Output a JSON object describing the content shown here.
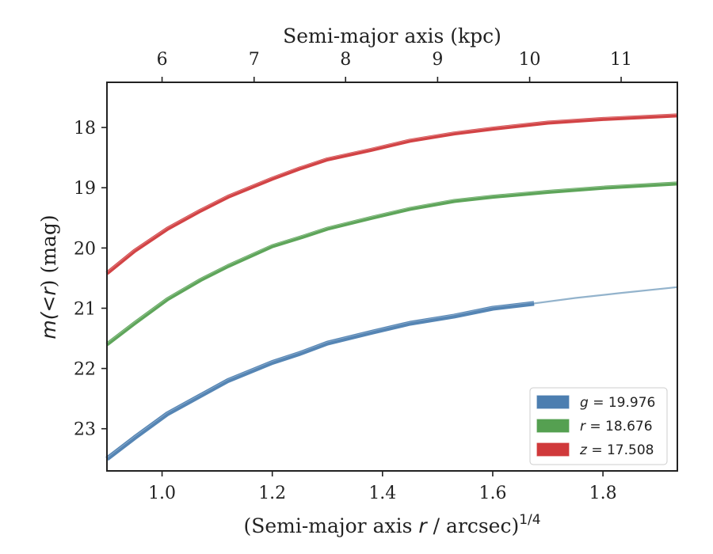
{
  "chart_data": {
    "type": "line",
    "xlabel_prefix": "(Semi-major axis ",
    "xlabel_var": "r",
    "xlabel_suffix": " / arcsec)",
    "xlabel_exponent": "1/4",
    "top_xlabel": "Semi-major axis (kpc)",
    "ylabel_prefix": "m(<",
    "ylabel_var": "r",
    "ylabel_suffix": ") (mag)",
    "xlim": [
      0.9,
      1.935
    ],
    "ylim": [
      23.7,
      17.25
    ],
    "y_inverted": true,
    "xticks": [
      1.0,
      1.2,
      1.4,
      1.6,
      1.8
    ],
    "xtick_labels": [
      "1.0",
      "1.2",
      "1.4",
      "1.6",
      "1.8"
    ],
    "yticks": [
      18,
      19,
      20,
      21,
      22,
      23
    ],
    "ytick_labels": [
      "18",
      "19",
      "20",
      "21",
      "22",
      "23"
    ],
    "top_xticks": [
      {
        "label": "6",
        "x": 1.0
      },
      {
        "label": "7",
        "x": 1.167
      },
      {
        "label": "8",
        "x": 1.333
      },
      {
        "label": "9",
        "x": 1.5
      },
      {
        "label": "10",
        "x": 1.667
      },
      {
        "label": "11",
        "x": 1.833
      }
    ],
    "grid": false,
    "legend_position": "lower-right",
    "series": [
      {
        "name": "g",
        "legend_label_var": "g",
        "legend_label_value": " = 19.976",
        "color": "#4c7eb0",
        "x": [
          0.9,
          0.95,
          1.01,
          1.07,
          1.12,
          1.2,
          1.25,
          1.3,
          1.38,
          1.45,
          1.53,
          1.6,
          1.675
        ],
        "y": [
          23.5,
          23.15,
          22.75,
          22.45,
          22.2,
          21.9,
          21.75,
          21.58,
          21.4,
          21.25,
          21.13,
          21.0,
          20.92
        ],
        "extension_color": "#93b3cc",
        "extension_x": [
          1.675,
          1.75,
          1.83,
          1.935
        ],
        "extension_y": [
          20.92,
          20.83,
          20.75,
          20.65
        ]
      },
      {
        "name": "r",
        "legend_label_var": "r",
        "legend_label_value": " = 18.676",
        "color": "#55a051",
        "x": [
          0.9,
          0.95,
          1.01,
          1.07,
          1.12,
          1.2,
          1.25,
          1.3,
          1.38,
          1.45,
          1.53,
          1.6,
          1.7,
          1.8,
          1.935
        ],
        "y": [
          21.6,
          21.25,
          20.85,
          20.53,
          20.3,
          19.97,
          19.83,
          19.68,
          19.5,
          19.35,
          19.22,
          19.15,
          19.07,
          19.0,
          18.93
        ]
      },
      {
        "name": "z",
        "legend_label_var": "z",
        "legend_label_value": " = 17.508",
        "color": "#d0393b",
        "x": [
          0.9,
          0.95,
          1.01,
          1.07,
          1.12,
          1.2,
          1.25,
          1.3,
          1.38,
          1.45,
          1.53,
          1.6,
          1.7,
          1.8,
          1.935
        ],
        "y": [
          20.42,
          20.05,
          19.68,
          19.38,
          19.15,
          18.85,
          18.68,
          18.53,
          18.37,
          18.22,
          18.1,
          18.02,
          17.92,
          17.86,
          17.8
        ]
      }
    ]
  }
}
